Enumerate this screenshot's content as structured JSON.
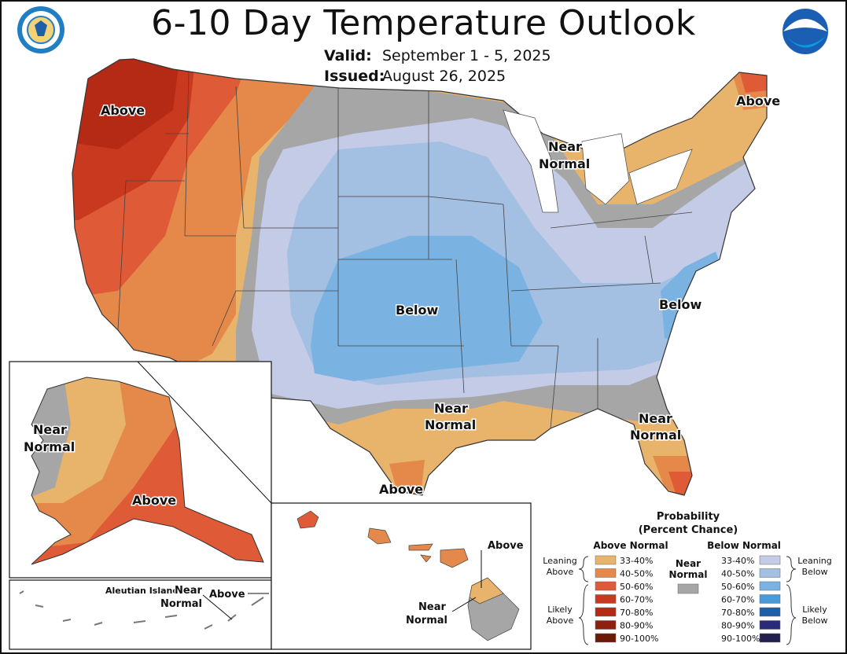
{
  "header": {
    "title": "6-10 Day Temperature Outlook",
    "valid_label": "Valid:",
    "valid_value": "September 1 - 5, 2025",
    "issued_label": "Issued:",
    "issued_value": "August 26, 2025"
  },
  "map_labels": {
    "west": "Above",
    "northeast": "Above",
    "great_lakes_1": "Near",
    "great_lakes_2": "Normal",
    "central": "Below",
    "southeast": "Below",
    "gulf_1": "Near",
    "gulf_2": "Normal",
    "florida_1": "Near",
    "florida_2": "Normal",
    "texas": "Above"
  },
  "alaska_labels": {
    "west_1": "Near",
    "west_2": "Normal",
    "south": "Above",
    "aleutian_title": "Aleutian Islands",
    "aleutian_near_1": "Near",
    "aleutian_near_2": "Normal",
    "aleutian_above": "Above"
  },
  "hawaii_labels": {
    "above": "Above",
    "near_1": "Near",
    "near_2": "Normal"
  },
  "legend": {
    "title_1": "Probability",
    "title_2": "(Percent Chance)",
    "above_header": "Above Normal",
    "below_header": "Below Normal",
    "near_1": "Near",
    "near_2": "Normal",
    "leaning_above_1": "Leaning",
    "leaning_above_2": "Above",
    "likely_above_1": "Likely",
    "likely_above_2": "Above",
    "leaning_below_1": "Leaning",
    "leaning_below_2": "Below",
    "likely_below_1": "Likely",
    "likely_below_2": "Below",
    "above_levels": [
      "33-40%",
      "40-50%",
      "50-60%",
      "60-70%",
      "70-80%",
      "80-90%",
      "90-100%"
    ],
    "below_levels": [
      "33-40%",
      "40-50%",
      "50-60%",
      "60-70%",
      "70-80%",
      "80-90%",
      "90-100%"
    ],
    "above_colors": [
      "#e8b36b",
      "#e5894a",
      "#df5a36",
      "#c9391f",
      "#b52a14",
      "#8e200e",
      "#6b1a06"
    ],
    "below_colors": [
      "#c3cbe7",
      "#a3bfe2",
      "#7ab3e2",
      "#4a9ad9",
      "#1f5fa8",
      "#2a2a7a",
      "#22204f"
    ],
    "near_color": "#a6a6a6"
  }
}
